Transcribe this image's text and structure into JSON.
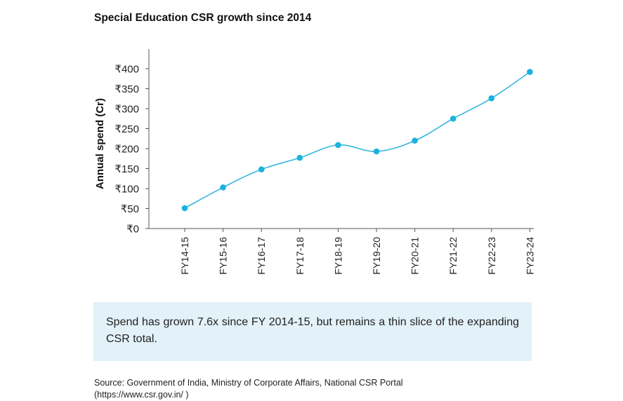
{
  "chart_data": {
    "type": "line",
    "title": "Special Education CSR growth since 2014",
    "xlabel": "",
    "ylabel": "Annual spend (Cr)",
    "categories": [
      "FY14-15",
      "FY15-16",
      "FY16-17",
      "FY17-18",
      "FY18-19",
      "FY19-20",
      "FY20-21",
      "FY21-22",
      "FY22-23",
      "FY23-24"
    ],
    "series": [
      {
        "values": [
          51,
          103,
          148,
          177,
          209,
          193,
          220,
          275,
          326,
          392
        ]
      }
    ],
    "ylim": [
      0,
      400
    ],
    "yticks": [
      "₹0",
      "₹50",
      "₹100",
      "₹150",
      "₹200",
      "₹250",
      "₹300",
      "₹350",
      "₹400"
    ],
    "grid": false,
    "legend": "none",
    "line_color": "#35b8de",
    "point_color": "#1ab2e0"
  },
  "note_text": "Spend has grown 7.6x since FY 2014-15, but remains a thin slice of the expanding CSR total.",
  "source_text": "Source: Government of India, Ministry of Corporate Affairs, National CSR Portal (https://www.csr.gov.in/ )"
}
